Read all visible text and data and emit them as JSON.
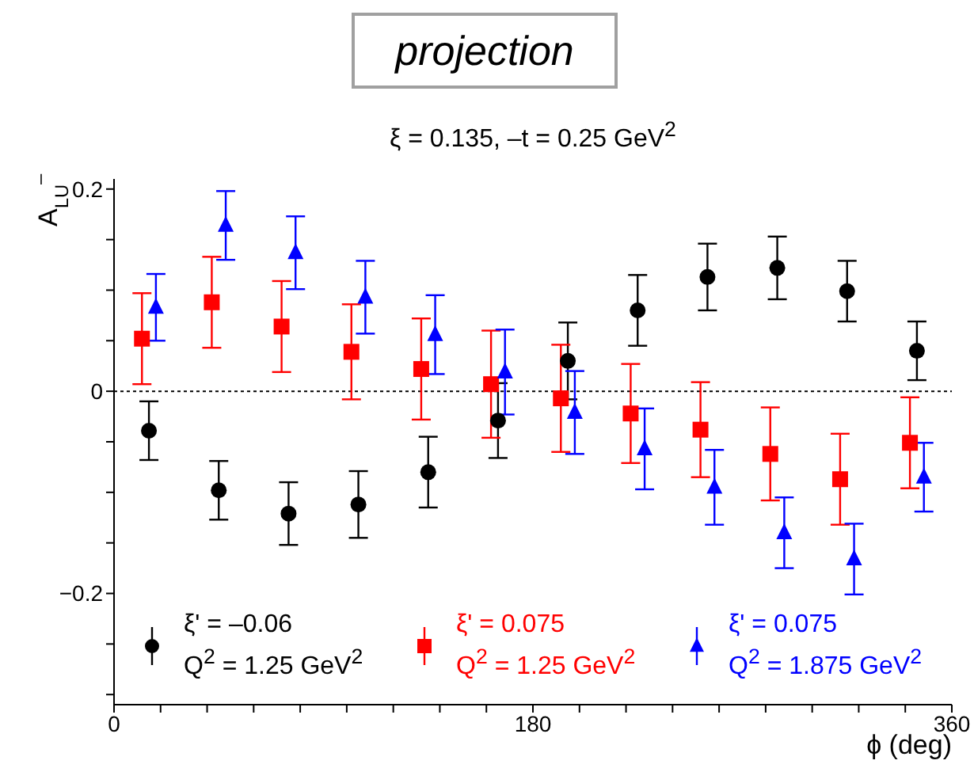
{
  "chart_data": {
    "type": "scatter",
    "title": "ξ = 0.135, –t = 0.25 GeV$^{2}$",
    "xlabel": "ϕ (deg)",
    "ylabel": "A$_{LU}$$^{–}$",
    "annotations": [
      "projection"
    ],
    "xlim": [
      0,
      360
    ],
    "xticks": [
      0,
      {
        "value": 20,
        "label": null
      },
      {
        "value": 40,
        "label": null
      },
      {
        "value": 60,
        "label": null
      },
      {
        "value": 80,
        "label": null
      },
      {
        "value": 100,
        "label": null
      },
      {
        "value": 120,
        "label": null
      },
      {
        "value": 140,
        "label": null
      },
      {
        "value": 160,
        "label": null
      },
      180,
      {
        "value": 200,
        "label": null
      },
      {
        "value": 220,
        "label": null
      },
      {
        "value": 240,
        "label": null
      },
      {
        "value": 260,
        "label": null
      },
      {
        "value": 280,
        "label": null
      },
      {
        "value": 300,
        "label": null
      },
      {
        "value": 320,
        "label": null
      },
      {
        "value": 340,
        "label": null
      },
      360
    ],
    "ylim": [
      -0.31,
      0.21
    ],
    "yticks": [
      {
        "value": -0.3,
        "label": null
      },
      {
        "value": -0.25,
        "label": null
      },
      {
        "value": -0.2,
        "label": "−0.2"
      },
      {
        "value": -0.15,
        "label": null
      },
      {
        "value": -0.1,
        "label": null
      },
      {
        "value": -0.05,
        "label": null
      },
      0,
      {
        "value": 0.05,
        "label": null
      },
      {
        "value": 0.1,
        "label": null
      },
      {
        "value": 0.15,
        "label": null
      },
      0.2
    ],
    "legend": "bottom",
    "ref_lines": [
      {
        "axis": "y",
        "value": 0,
        "color": "#000000",
        "line_style": "dotted"
      }
    ],
    "series": [
      {
        "name": "ξ' = –0.06\nQ$^{2}$ = 1.25 GeV$^{2}$",
        "color": "#000000",
        "marker": "circle",
        "x": [
          15,
          45,
          75,
          105,
          135,
          165,
          195,
          225,
          255,
          285,
          315,
          345
        ],
        "values": [
          -0.039,
          -0.098,
          -0.121,
          -0.112,
          -0.08,
          -0.029,
          0.03,
          0.08,
          0.113,
          0.122,
          0.099,
          0.04
        ],
        "errors": [
          0.029,
          0.029,
          0.031,
          0.033,
          0.035,
          0.037,
          0.038,
          0.035,
          0.033,
          0.031,
          0.03,
          0.029
        ]
      },
      {
        "name": "ξ' = 0.075\nQ$^{2}$ = 1.25 GeV$^{2}$",
        "color": "#ff0000",
        "marker": "square",
        "x": [
          12,
          42,
          72,
          102,
          132,
          162,
          192,
          222,
          252,
          282,
          312,
          342
        ],
        "values": [
          0.052,
          0.088,
          0.064,
          0.039,
          0.022,
          0.007,
          -0.007,
          -0.022,
          -0.038,
          -0.062,
          -0.087,
          -0.051
        ],
        "errors": [
          0.045,
          0.045,
          0.045,
          0.047,
          0.05,
          0.053,
          0.053,
          0.049,
          0.047,
          0.046,
          0.045,
          0.045
        ]
      },
      {
        "name": "ξ' = 0.075\nQ$^{2}$ = 1.875 GeV$^{2}$",
        "color": "#0000ff",
        "marker": "triangle",
        "x": [
          18,
          48,
          78,
          108,
          138,
          168,
          198,
          228,
          258,
          288,
          318,
          348
        ],
        "values": [
          0.083,
          0.164,
          0.137,
          0.093,
          0.056,
          0.019,
          -0.021,
          -0.057,
          -0.095,
          -0.14,
          -0.166,
          -0.085
        ],
        "errors": [
          0.033,
          0.034,
          0.036,
          0.036,
          0.039,
          0.042,
          0.041,
          0.04,
          0.037,
          0.035,
          0.035,
          0.034
        ]
      }
    ]
  }
}
